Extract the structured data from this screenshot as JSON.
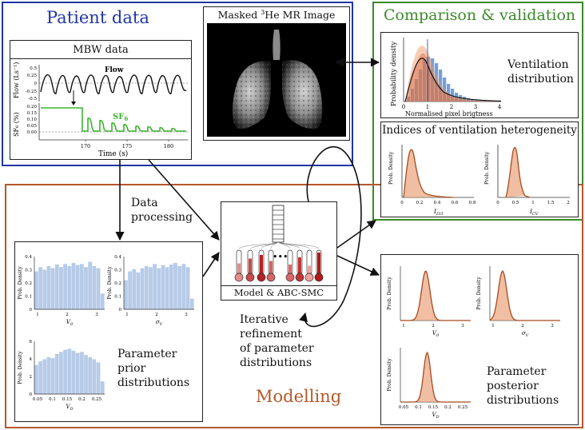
{
  "regions": {
    "patient": {
      "title": "Patient data",
      "color": "#1f35a8"
    },
    "comparison": {
      "title": "Comparison & validation",
      "color": "#3b8a2a"
    },
    "modelling": {
      "title": "Modelling",
      "color": "#b5582a"
    }
  },
  "mbw": {
    "title": "MBW data",
    "flow_label": "Flow",
    "sf6_label": "SF6",
    "sf6_base": "SF",
    "sf6_sub": "6",
    "y_flow_label": "Flow (Ls⁻¹)",
    "y_sf6_label": "SF₆ (%)",
    "x_label": "Time (s)",
    "x_ticks": [
      "170",
      "175",
      "180"
    ],
    "flow_ticks": [
      "0.5",
      "0.25",
      "0",
      "-0.25",
      "-0.5"
    ],
    "sf6_ticks": [
      "0.20",
      "0.15",
      "0.10",
      "0.05",
      "0.00"
    ]
  },
  "mri": {
    "title_pre": "Masked ",
    "title_sup": "3",
    "title_post": "He MR Image"
  },
  "ventilation": {
    "label_line1": "Ventilation",
    "label_line2": "distribution",
    "x_label": "Normalised pixel brigtness",
    "y_label": "Probability density",
    "x_ticks": [
      "0",
      "1",
      "2",
      "3",
      "4"
    ]
  },
  "indices": {
    "title": "Indices of ventilation heterogeneity",
    "y_label": "Prob. Density",
    "plots": [
      {
        "x_label": "I_LVI",
        "x_ticks": [
          "0",
          "0.2",
          "0.4",
          "0.6",
          "0.8"
        ]
      },
      {
        "x_label": "I_CV",
        "x_ticks": [
          "0",
          "0.5",
          "1",
          "1.5",
          "2"
        ]
      }
    ]
  },
  "model": {
    "label": "Model & ABC-SMC",
    "dots": "•••"
  },
  "prior": {
    "label_line1": "Parameter",
    "label_line2": "prior",
    "label_line3": "distributions",
    "y_label": "Prob. Density",
    "plots": [
      {
        "x_label": "V_0",
        "x_ticks": [
          "1",
          "2",
          "3"
        ],
        "y_ticks": [
          "0.4",
          "0.3",
          "0.2",
          "0.1",
          "0"
        ]
      },
      {
        "x_label": "σ_V",
        "x_ticks": [
          "1",
          "2",
          "3"
        ],
        "y_ticks": [
          "0.4",
          "0.3",
          "0.2",
          "0.1",
          "0"
        ]
      },
      {
        "x_label": "V_D",
        "x_ticks": [
          "0.05",
          "0.1",
          "0.15",
          "0.2",
          "0.25"
        ],
        "y_ticks": [
          "6",
          "4",
          "2",
          "0"
        ]
      }
    ]
  },
  "posterior": {
    "label_line1": "Parameter",
    "label_line2": "posterior",
    "label_line3": "distributions",
    "y_label": "Prob. Density",
    "plots": [
      {
        "x_label": "V_0",
        "x_ticks": [
          "1",
          "2",
          "3"
        ]
      },
      {
        "x_label": "σ_V",
        "x_ticks": [
          "1",
          "2",
          "3"
        ]
      },
      {
        "x_label": "V_D",
        "x_ticks": [
          "0.05",
          "0.1",
          "0.15",
          "0.2",
          "0.25"
        ]
      }
    ]
  },
  "arrows": {
    "data_processing_line1": "Data",
    "data_processing_line2": "processing",
    "iterative_line1": "Iterative",
    "iterative_line2": "refinement",
    "iterative_line3": "of parameter",
    "iterative_line4": "distributions"
  }
}
